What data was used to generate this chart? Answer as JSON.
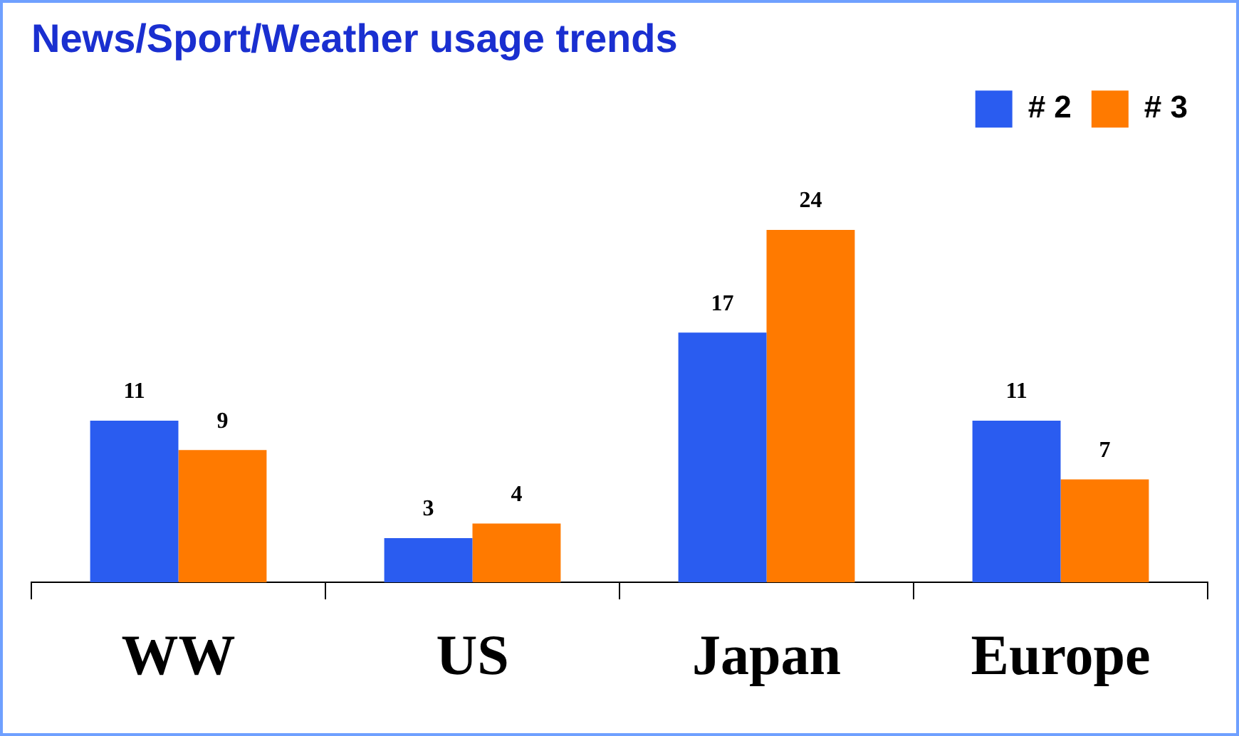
{
  "chart_data": {
    "type": "bar",
    "title": "News/Sport/Weather usage trends",
    "categories": [
      "WW",
      "US",
      "Japan",
      "Europe"
    ],
    "series": [
      {
        "name": "# 2",
        "color": "#2a5cf0",
        "values": [
          11,
          3,
          17,
          11
        ]
      },
      {
        "name": "# 3",
        "color": "#ff7a00",
        "values": [
          9,
          4,
          24,
          7
        ]
      }
    ],
    "data_labels": true,
    "grid": false,
    "legend": "top right"
  }
}
